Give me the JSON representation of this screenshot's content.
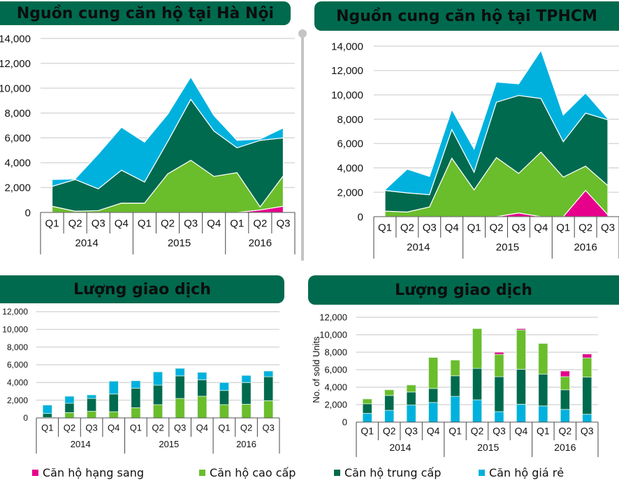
{
  "colors": {
    "luxury": "#e6008c",
    "high_end": "#6abd2b",
    "mid_end": "#006a4e",
    "affordable": "#00b1de",
    "title_bar": "#006a4e",
    "grid": "#d9d9d9"
  },
  "legend": [
    {
      "label": "Căn hộ hạng sang",
      "color_key": "luxury"
    },
    {
      "label": "Căn hộ cao cấp",
      "color_key": "high_end"
    },
    {
      "label": "Căn hộ trung cấp",
      "color_key": "mid_end"
    },
    {
      "label": "Căn hộ giá rẻ",
      "color_key": "affordable"
    }
  ],
  "chart_data": [
    {
      "id": "hanoi-supply",
      "type": "area",
      "stacked": true,
      "title": "Nguồn cung căn hộ tại Hà Nội",
      "xlabel": "",
      "ylabel": "",
      "ylim": [
        0,
        14000
      ],
      "yticks": [
        "0",
        "2,000",
        "4,000",
        "6,000",
        "8,000",
        "10,000",
        "12,000",
        "14,000"
      ],
      "grid": true,
      "categories": [
        "Q1",
        "Q2",
        "Q3",
        "Q4",
        "Q1",
        "Q2",
        "Q3",
        "Q4",
        "Q1",
        "Q2",
        "Q3"
      ],
      "groups": [
        {
          "label": "2014",
          "span": 4
        },
        {
          "label": "2015",
          "span": 4
        },
        {
          "label": "2016",
          "span": 3
        }
      ],
      "series": [
        {
          "name": "Căn hộ hạng sang",
          "color_key": "luxury",
          "values": [
            0,
            0,
            0,
            0,
            0,
            0,
            0,
            0,
            0,
            200,
            500
          ]
        },
        {
          "name": "Căn hộ cao cấp",
          "color_key": "high_end",
          "values": [
            500,
            100,
            150,
            750,
            750,
            3100,
            4200,
            2900,
            3200,
            250,
            2450
          ]
        },
        {
          "name": "Căn hộ trung cấp",
          "color_key": "mid_end",
          "values": [
            1600,
            2550,
            1750,
            2650,
            1700,
            2600,
            4900,
            3650,
            2000,
            5350,
            3050
          ]
        },
        {
          "name": "Căn hộ giá rẻ",
          "color_key": "affordable",
          "values": [
            550,
            50,
            2800,
            3450,
            3200,
            2200,
            1800,
            1250,
            600,
            100,
            800
          ]
        }
      ]
    },
    {
      "id": "hcmc-supply",
      "type": "area",
      "stacked": true,
      "title": "Nguồn cung căn hộ tại TPHCM",
      "xlabel": "",
      "ylabel": "",
      "ylim": [
        0,
        14000
      ],
      "yticks": [
        "0",
        "2,000",
        "4,000",
        "6,000",
        "8,000",
        "10,000",
        "12,000",
        "14,000"
      ],
      "grid": true,
      "categories": [
        "Q1",
        "Q2",
        "Q3",
        "Q4",
        "Q1",
        "Q2",
        "Q3",
        "Q4",
        "Q1",
        "Q2",
        "Q3"
      ],
      "groups": [
        {
          "label": "2014",
          "span": 4
        },
        {
          "label": "2015",
          "span": 4
        },
        {
          "label": "2016",
          "span": 3
        }
      ],
      "series": [
        {
          "name": "Căn hộ hạng sang",
          "color_key": "luxury",
          "values": [
            0,
            0,
            0,
            0,
            0,
            0,
            300,
            0,
            0,
            2150,
            150
          ]
        },
        {
          "name": "Căn hộ cao cấp",
          "color_key": "high_end",
          "values": [
            450,
            380,
            800,
            4800,
            2200,
            4850,
            3250,
            5300,
            3250,
            2000,
            2400
          ]
        },
        {
          "name": "Căn hộ trung cấp",
          "color_key": "mid_end",
          "values": [
            1700,
            1570,
            1000,
            2350,
            1450,
            4550,
            6400,
            4400,
            2900,
            4350,
            5400
          ]
        },
        {
          "name": "Căn hộ giá rẻ",
          "color_key": "affordable",
          "values": [
            50,
            1950,
            1500,
            1650,
            1900,
            1650,
            950,
            3950,
            2200,
            1650,
            100
          ]
        }
      ]
    },
    {
      "id": "hanoi-transactions",
      "type": "bar",
      "stacked": true,
      "title": "Lượng giao dịch",
      "xlabel": "",
      "ylabel": "",
      "ylim": [
        0,
        12000
      ],
      "yticks": [
        "0",
        "2,000",
        "4,000",
        "6,000",
        "8,000",
        "10,000",
        "12,000"
      ],
      "grid": true,
      "categories": [
        "Q1",
        "Q2",
        "Q3",
        "Q4",
        "Q1",
        "Q2",
        "Q3",
        "Q4",
        "Q1",
        "Q2",
        "Q3"
      ],
      "groups": [
        {
          "label": "2014",
          "span": 4
        },
        {
          "label": "2015",
          "span": 4
        },
        {
          "label": "2016",
          "span": 3
        }
      ],
      "series": [
        {
          "name": "Căn hộ hạng sang",
          "color_key": "luxury",
          "values": [
            0,
            0,
            0,
            0,
            0,
            0,
            0,
            0,
            0,
            0,
            0
          ]
        },
        {
          "name": "Căn hộ cao cấp",
          "color_key": "high_end",
          "values": [
            50,
            600,
            750,
            700,
            1150,
            1500,
            2200,
            2450,
            1500,
            1550,
            1950
          ]
        },
        {
          "name": "Căn hộ trung cấp",
          "color_key": "mid_end",
          "values": [
            450,
            1050,
            1450,
            2000,
            2200,
            2200,
            2550,
            1850,
            1600,
            2450,
            2700
          ]
        },
        {
          "name": "Căn hộ giá rẻ",
          "color_key": "affordable",
          "values": [
            950,
            800,
            400,
            1450,
            850,
            1500,
            850,
            850,
            900,
            800,
            650
          ]
        }
      ]
    },
    {
      "id": "hcmc-transactions",
      "type": "bar",
      "stacked": true,
      "title": "Lượng giao dịch",
      "xlabel": "",
      "ylabel": "No. of sold Units",
      "ylim": [
        0,
        12000
      ],
      "yticks": [
        "0",
        "2,000",
        "4,000",
        "6,000",
        "8,000",
        "10,000",
        "12,000"
      ],
      "grid": true,
      "categories": [
        "Q1",
        "Q2",
        "Q3",
        "Q4",
        "Q1",
        "Q2",
        "Q3",
        "Q4",
        "Q1",
        "Q2",
        "Q3"
      ],
      "groups": [
        {
          "label": "2014",
          "span": 4
        },
        {
          "label": "2015",
          "span": 4
        },
        {
          "label": "2016",
          "span": 3
        }
      ],
      "series": [
        {
          "name": "Căn hộ giá rẻ",
          "color_key": "affordable",
          "values": [
            1000,
            1350,
            1950,
            2250,
            2950,
            2550,
            1200,
            2050,
            1850,
            1450,
            900
          ]
        },
        {
          "name": "Căn hộ trung cấp",
          "color_key": "mid_end",
          "values": [
            1100,
            1700,
            1500,
            1600,
            2350,
            3600,
            4000,
            4000,
            3650,
            2250,
            4250
          ]
        },
        {
          "name": "Căn hộ cao cấp",
          "color_key": "high_end",
          "values": [
            550,
            650,
            800,
            3550,
            1800,
            4550,
            2550,
            4500,
            3500,
            1500,
            2200
          ]
        },
        {
          "name": "Căn hộ hạng sang",
          "color_key": "luxury",
          "values": [
            0,
            0,
            0,
            0,
            0,
            0,
            250,
            150,
            0,
            650,
            450
          ]
        }
      ]
    }
  ]
}
